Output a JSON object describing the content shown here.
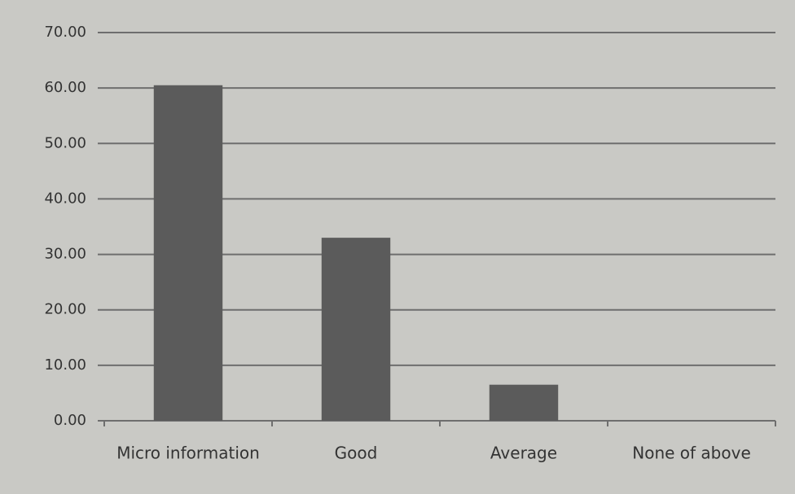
{
  "chart_data": {
    "type": "bar",
    "categories": [
      "Micro information",
      "Good",
      "Average",
      "None of above"
    ],
    "values": [
      60.5,
      33,
      6.5,
      0
    ],
    "color": "#5b5b5b",
    "ylim": [
      0,
      70
    ],
    "yticks": [
      {
        "value": 0,
        "label": "0.00"
      },
      {
        "value": 10,
        "label": "10.00"
      },
      {
        "value": 20,
        "label": "20.00"
      },
      {
        "value": 30,
        "label": "30.00"
      },
      {
        "value": 40,
        "label": "40.00"
      },
      {
        "value": 50,
        "label": "50.00"
      },
      {
        "value": 60,
        "label": "60.00"
      },
      {
        "value": 70,
        "label": "70.00"
      }
    ],
    "grid": true
  }
}
